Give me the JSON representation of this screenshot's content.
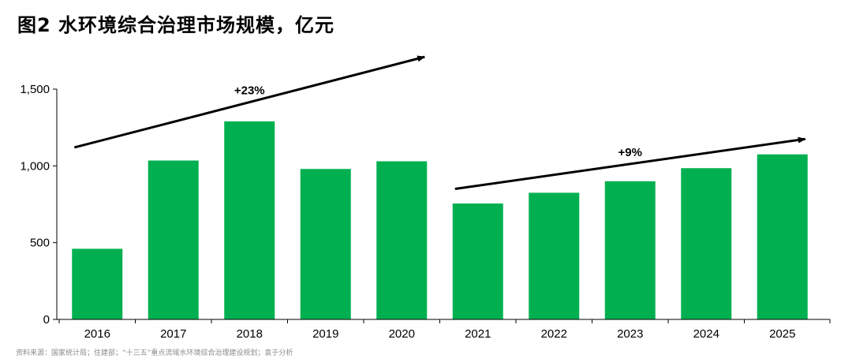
{
  "title": "图2  水环境综合治理市场规模，亿元",
  "source": "资料来源：国家统计局；住建部；“十三五”重点流域水环境综合治理建设规划；袁于分析",
  "colors": {
    "bar": "#00b050",
    "axis": "#000000",
    "arrow": "#000000"
  },
  "chart_data": {
    "type": "bar",
    "title": "",
    "xlabel": "",
    "ylabel": "",
    "categories": [
      "2016",
      "2017",
      "2018",
      "2019",
      "2020",
      "2021",
      "2022",
      "2023",
      "2024",
      "2025"
    ],
    "values": [
      460,
      1035,
      1290,
      980,
      1030,
      755,
      825,
      900,
      985,
      1075
    ],
    "ylim": [
      0,
      1500
    ],
    "yticks": [
      0,
      500,
      1000,
      1500
    ],
    "ytick_labels": [
      "0",
      "500",
      "1,000",
      "1,500"
    ],
    "grid": false,
    "legend": "none",
    "annotations": [
      {
        "text": "+23%",
        "from_category": "2016",
        "to_category": "2020",
        "from_value": 1120,
        "to_value": 1710
      },
      {
        "text": "+9%",
        "from_category": "2021",
        "to_category": "2025",
        "from_value": 850,
        "to_value": 1175
      }
    ]
  }
}
